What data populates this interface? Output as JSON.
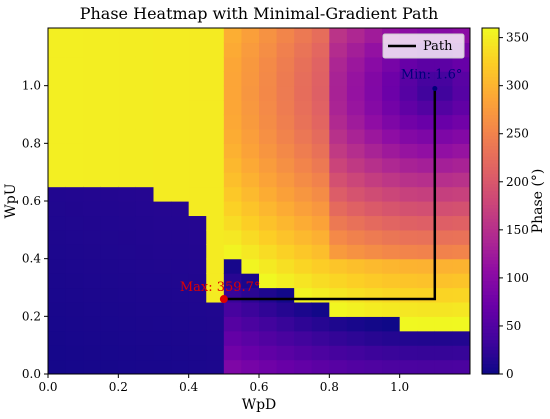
{
  "chart_data": {
    "type": "heatmap",
    "title": "Phase Heatmap with Minimal-Gradient Path",
    "xlabel": "WpD",
    "ylabel": "WpU",
    "xlim": [
      0.0,
      1.2
    ],
    "ylim": [
      0.0,
      1.2
    ],
    "xticks": [
      0.0,
      0.2,
      0.4,
      0.6,
      0.8,
      1.0
    ],
    "yticks": [
      0.0,
      0.2,
      0.4,
      0.6,
      0.8,
      1.0
    ],
    "grid": false,
    "grid_size": 24,
    "colorscale": "plasma",
    "colorbar": {
      "label": "Phase (°)",
      "range": [
        0,
        360
      ],
      "ticks": [
        0,
        50,
        100,
        150,
        200,
        250,
        300,
        350
      ]
    },
    "path": {
      "name": "Path",
      "color": "#000000",
      "points": [
        [
          0.5,
          0.26
        ],
        [
          1.1,
          0.26
        ],
        [
          1.1,
          0.99
        ]
      ]
    },
    "max_point": {
      "x": 0.5,
      "y": 0.26,
      "label": "Max: 359.7°",
      "color": "#dd0000"
    },
    "min_point": {
      "x": 1.1,
      "y": 0.99,
      "label": "Min: 1.6°",
      "color": "#00007a"
    },
    "legend": {
      "location": "upper-right",
      "entries": [
        "Path"
      ]
    }
  }
}
